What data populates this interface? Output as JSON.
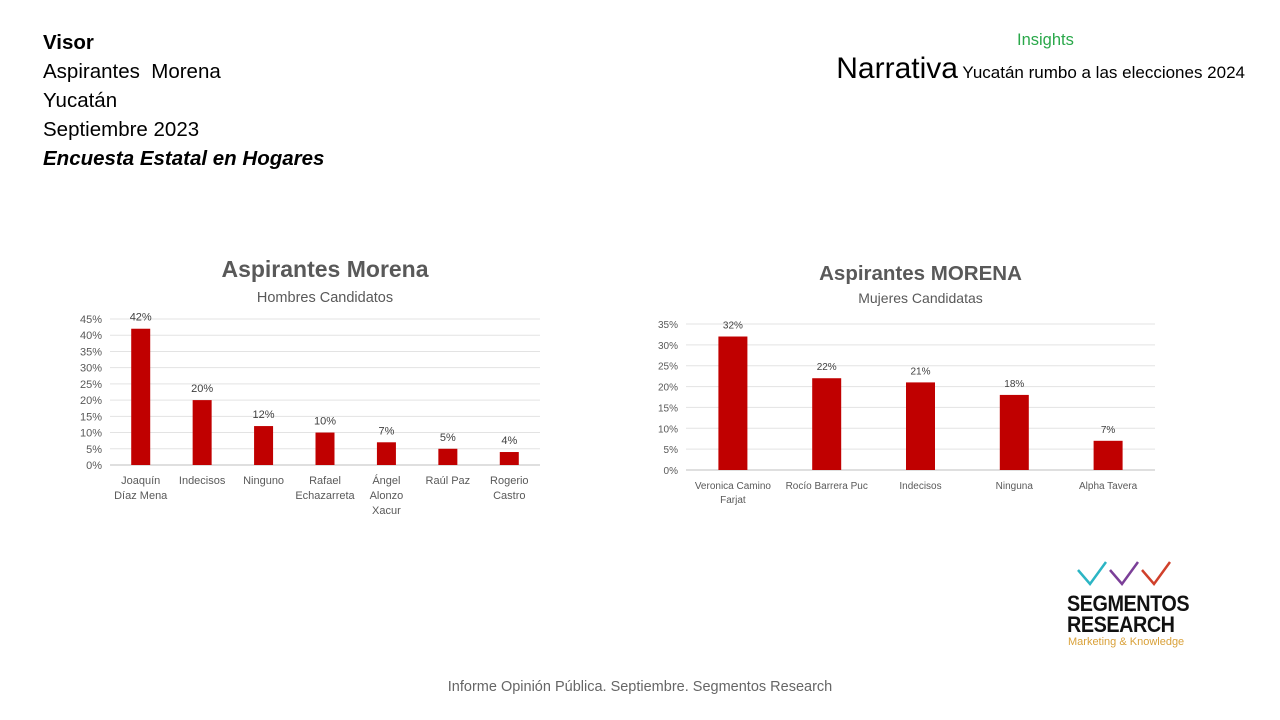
{
  "header": {
    "visor": "Visor",
    "line1": "Aspirantes  Morena",
    "line2": "Yucatán",
    "line3": "Septiembre 2023",
    "survey": "Encuesta Estatal en Hogares"
  },
  "insights": "Insights",
  "narrativa": {
    "word": "Narrativa",
    "subtitle": "Yucatán rumbo a las elecciones 2024"
  },
  "chart_data": [
    {
      "type": "bar",
      "title": "Aspirantes Morena",
      "subtitle": "Hombres Candidatos",
      "categories": [
        [
          "Joaquín",
          "Díaz Mena"
        ],
        [
          "Indecisos"
        ],
        [
          "Ninguno"
        ],
        [
          "Rafael",
          "Echazarreta"
        ],
        [
          "Ángel",
          "Alonzo",
          "Xacur"
        ],
        [
          "Raúl Paz"
        ],
        [
          "Rogerio",
          "Castro"
        ]
      ],
      "values": [
        42,
        20,
        12,
        10,
        7,
        5,
        4
      ],
      "value_labels": [
        "42%",
        "20%",
        "12%",
        "10%",
        "7%",
        "5%",
        "4%"
      ],
      "yticks": [
        "0%",
        "5%",
        "10%",
        "15%",
        "20%",
        "25%",
        "30%",
        "35%",
        "40%",
        "45%"
      ],
      "ylim": [
        0,
        45
      ],
      "grid": true,
      "bar_color": "#c00000"
    },
    {
      "type": "bar",
      "title": "Aspirantes MORENA",
      "subtitle": "Mujeres Candidatas",
      "categories": [
        [
          "Veronica Camino",
          "Farjat"
        ],
        [
          "Rocío Barrera Puc"
        ],
        [
          "Indecisos"
        ],
        [
          "Ninguna"
        ],
        [
          "Alpha Tavera"
        ]
      ],
      "values": [
        32,
        22,
        21,
        18,
        7
      ],
      "value_labels": [
        "32%",
        "22%",
        "21%",
        "18%",
        "7%"
      ],
      "yticks": [
        "0%",
        "5%",
        "10%",
        "15%",
        "20%",
        "25%",
        "30%",
        "35%"
      ],
      "ylim": [
        0,
        35
      ],
      "grid": true,
      "bar_color": "#c00000"
    }
  ],
  "logo": {
    "line1": "SEGMENTOS",
    "line2": "RESEARCH",
    "tagline": "Marketing & Knowledge",
    "check_colors": [
      "#2bb5c4",
      "#7b3f98",
      "#d0402b"
    ]
  },
  "footer": "Informe Opinión Pública. Septiembre. Segmentos Research"
}
